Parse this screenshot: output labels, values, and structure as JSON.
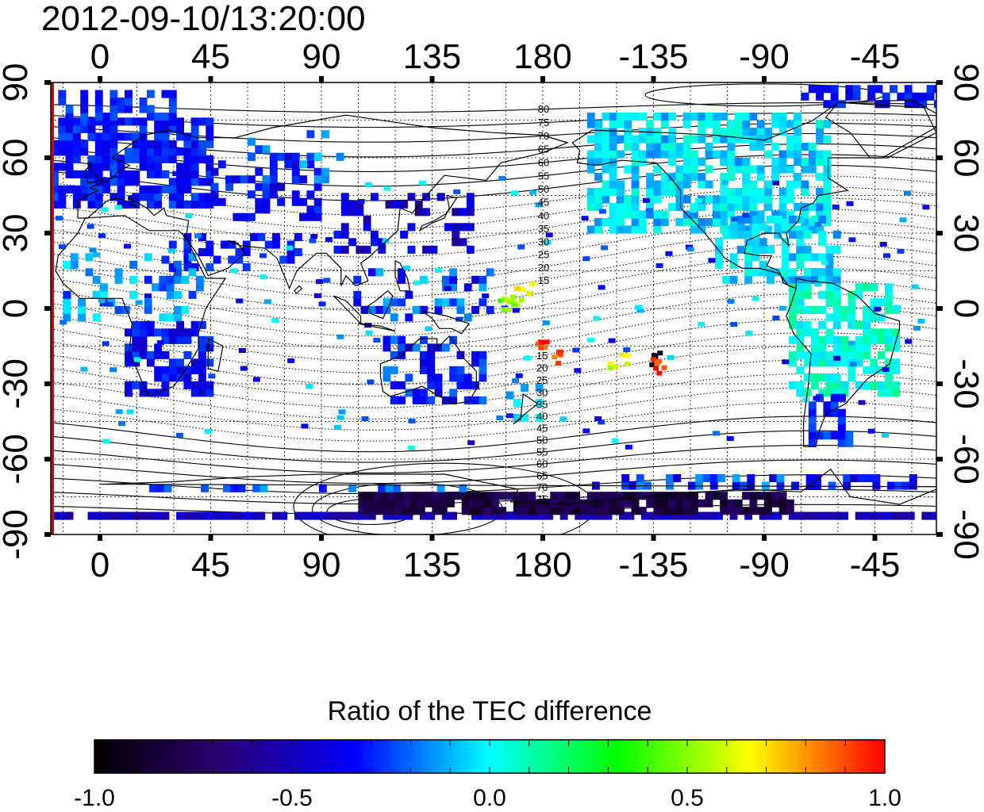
{
  "header": {
    "title": "2012-09-10/13:20:00"
  },
  "map": {
    "projection": "equirectangular",
    "lon_range_east": [
      -20,
      340
    ],
    "lat_range": [
      -90,
      90
    ],
    "lon_ticks": [
      0,
      45,
      90,
      135,
      180,
      225,
      270,
      315
    ],
    "lon_tick_labels": [
      "0",
      "45",
      "90",
      "135",
      "180",
      "-135",
      "-90",
      "-45"
    ],
    "lat_ticks": [
      90,
      60,
      30,
      0,
      -30,
      -60,
      -90
    ],
    "lat_tick_labels": [
      "90",
      "60",
      "30",
      "0",
      "-30",
      "-60",
      "-90"
    ],
    "north_contour_labels": [
      "80",
      "75",
      "70",
      "65",
      "60",
      "55",
      "50",
      "45",
      "40",
      "35",
      "30",
      "25",
      "20",
      "15"
    ],
    "south_contour_labels": [
      "15",
      "20",
      "25",
      "30",
      "35",
      "40",
      "45",
      "50",
      "55",
      "60",
      "65",
      "70",
      "75"
    ],
    "marker_line_color": "#dd0000",
    "coast_color": "#000000"
  },
  "colorbar": {
    "title": "Ratio of the TEC difference",
    "min": -1.0,
    "max": 1.0,
    "tick_labels": [
      "-1.0",
      "-0.5",
      "0.0",
      "0.5",
      "1.0"
    ],
    "colormap": [
      "#000000",
      "#2a0070",
      "#0000ff",
      "#00ffff",
      "#00ff00",
      "#ffff00",
      "#ff0000"
    ]
  }
}
